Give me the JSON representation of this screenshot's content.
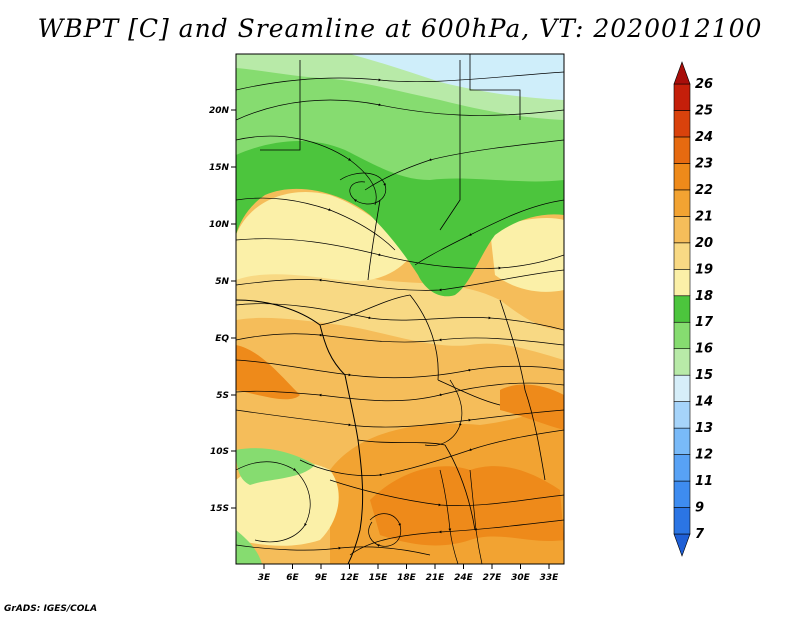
{
  "title": "WBPT [C] and Sreamline at 600hPa, VT: 2020012100",
  "credit": "GrADS: IGES/COLA",
  "x_ticks": [
    "3E",
    "6E",
    "9E",
    "12E",
    "15E",
    "18E",
    "21E",
    "24E",
    "27E",
    "30E",
    "33E"
  ],
  "y_ticks": [
    "20N",
    "15N",
    "10N",
    "5N",
    "EQ",
    "5S",
    "10S",
    "15S"
  ],
  "colorbar": {
    "labels": [
      "7",
      "9",
      "11",
      "12",
      "13",
      "14",
      "15",
      "16",
      "17",
      "18",
      "19",
      "20",
      "21",
      "22",
      "23",
      "24",
      "25",
      "26"
    ],
    "colors": [
      "#1e5fd6",
      "#2b75e4",
      "#3e8cf0",
      "#58a2f5",
      "#79baf8",
      "#a6d4fa",
      "#d6eef9",
      "#b8eaa8",
      "#86dc70",
      "#4cc53d",
      "#fbf0a8",
      "#f8d984",
      "#f5bd5a",
      "#f2a332",
      "#ee8a1a",
      "#e66a10",
      "#d9420c",
      "#c41f0a",
      "#a80e0a"
    ]
  },
  "map": {
    "region": "Central-southern Africa, 0E-35E, 20S-24N",
    "palette": {
      "light_blue": "#cfeefa",
      "light_green": "#b8eaa8",
      "mid_green": "#86dc70",
      "dark_green": "#4cc53d",
      "pale_yellow": "#fbf0a8",
      "light_orange": "#f8d984",
      "orange": "#f5bd5a",
      "dark_orange": "#f2a332",
      "red_orange": "#ee8a1a"
    }
  }
}
